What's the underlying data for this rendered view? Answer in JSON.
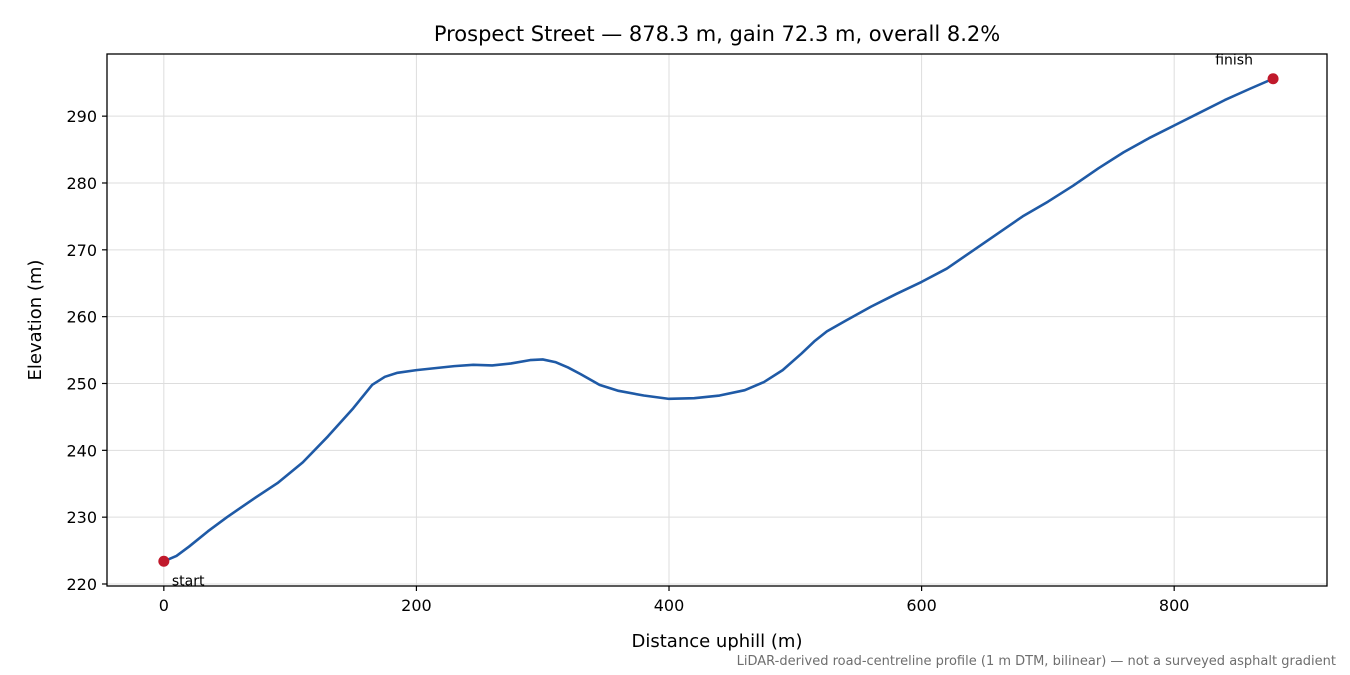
{
  "chart_data": {
    "type": "line",
    "title": "Prospect Street — 878.3 m, gain 72.3 m, overall 8.2%",
    "xlabel": "Distance uphill (m)",
    "ylabel": "Elevation (m)",
    "footnote": "LiDAR-derived road-centreline profile (1 m DTM, bilinear) — not a surveyed asphalt gradient",
    "xlim": [
      -45,
      921
    ],
    "ylim": [
      219.7,
      299.3
    ],
    "xticks": [
      0,
      200,
      400,
      600,
      800
    ],
    "yticks": [
      220,
      230,
      240,
      250,
      260,
      270,
      280,
      290
    ],
    "grid": true,
    "line_color": "#1f5aa6",
    "marker_color": "#c0192b",
    "series": [
      {
        "x": [
          0,
          10,
          20,
          35,
          50,
          70,
          90,
          110,
          130,
          150,
          165,
          175,
          185,
          200,
          215,
          230,
          245,
          260,
          275,
          290,
          300,
          310,
          320,
          330,
          345,
          360,
          380,
          400,
          420,
          440,
          460,
          475,
          490,
          505,
          515,
          525,
          540,
          560,
          580,
          600,
          620,
          640,
          660,
          680,
          700,
          720,
          740,
          760,
          780,
          800,
          820,
          840,
          860,
          878.3
        ],
        "y": [
          223.4,
          224.2,
          225.6,
          227.9,
          230.0,
          232.6,
          235.1,
          238.2,
          242.1,
          246.3,
          249.8,
          251.0,
          251.6,
          252.0,
          252.3,
          252.6,
          252.8,
          252.7,
          253.0,
          253.5,
          253.6,
          253.2,
          252.4,
          251.4,
          249.8,
          248.9,
          248.2,
          247.7,
          247.8,
          248.2,
          249.0,
          250.2,
          252.0,
          254.5,
          256.3,
          257.8,
          259.4,
          261.5,
          263.4,
          265.2,
          267.2,
          269.8,
          272.4,
          275.0,
          277.2,
          279.6,
          282.2,
          284.6,
          286.7,
          288.6,
          290.5,
          292.4,
          294.1,
          295.6
        ]
      }
    ],
    "annotations": [
      {
        "text": "start",
        "x": 0,
        "y": 223.4
      },
      {
        "text": "finish",
        "x": 878.3,
        "y": 295.6
      }
    ]
  }
}
